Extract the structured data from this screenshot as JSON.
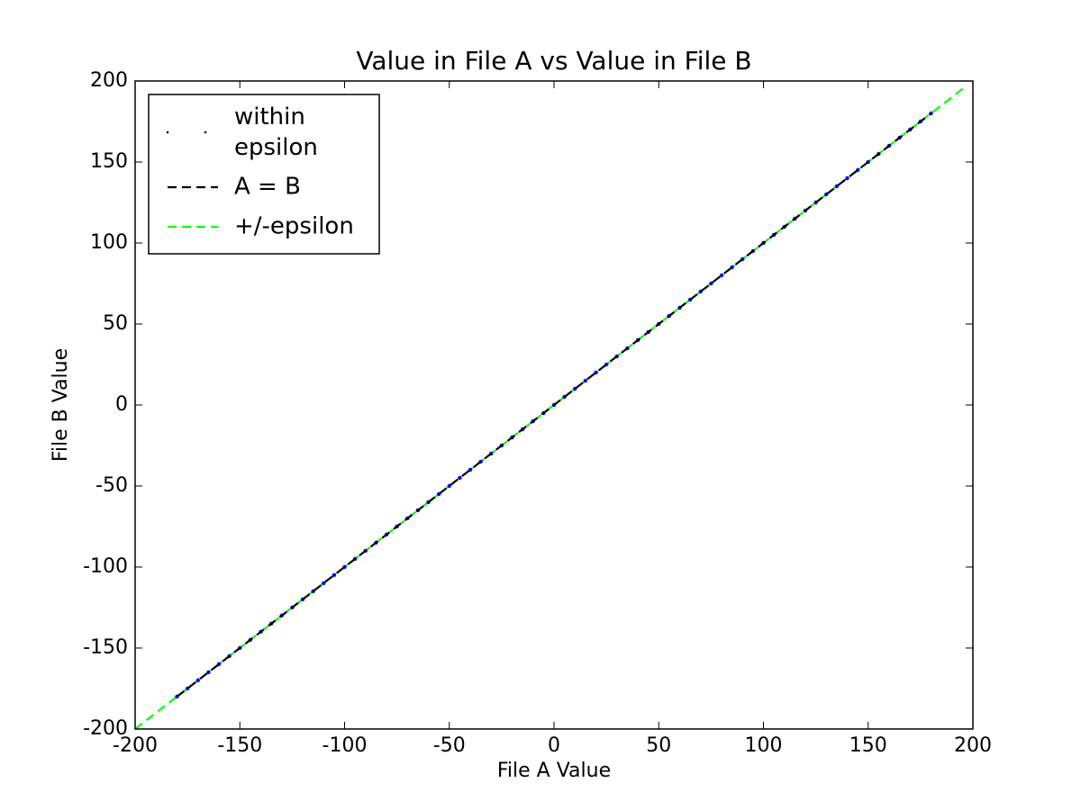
{
  "chart_data": {
    "type": "scatter",
    "title": "Value in File A vs Value in File B",
    "x_label": "File A Value",
    "y_label": "File B Value",
    "xlim": [
      -200,
      200
    ],
    "ylim": [
      -200,
      200
    ],
    "xticks": [
      -200,
      -150,
      -100,
      -50,
      0,
      50,
      100,
      150,
      200
    ],
    "yticks": [
      -200,
      -150,
      -100,
      -50,
      0,
      50,
      100,
      150,
      200
    ],
    "legend": "upper left",
    "series": [
      {
        "name": "within epsilon",
        "type": "scatter",
        "color": "#0000ff",
        "x": [
          -180,
          -175,
          -170,
          -165,
          -160,
          -155,
          -150,
          -145,
          -140,
          -135,
          -130,
          -125,
          -120,
          -115,
          -110,
          -105,
          -100,
          -95,
          -90,
          -85,
          -80,
          -75,
          -70,
          -65,
          -60,
          -55,
          -50,
          -45,
          -40,
          -35,
          -30,
          -25,
          -20,
          -15,
          -10,
          -5,
          0,
          5,
          10,
          15,
          20,
          25,
          30,
          35,
          40,
          45,
          50,
          55,
          60,
          65,
          70,
          75,
          80,
          85,
          90,
          95,
          100,
          105,
          110,
          115,
          120,
          125,
          130,
          135,
          140,
          145,
          150,
          155,
          160,
          165,
          170,
          175,
          180
        ],
        "values": [
          -180,
          -175,
          -170,
          -165,
          -160,
          -155,
          -150,
          -145,
          -140,
          -135,
          -130,
          -125,
          -120,
          -115,
          -110,
          -105,
          -100,
          -95,
          -90,
          -85,
          -80,
          -75,
          -70,
          -65,
          -60,
          -55,
          -50,
          -45,
          -40,
          -35,
          -30,
          -25,
          -20,
          -15,
          -10,
          -5,
          0,
          5,
          10,
          15,
          20,
          25,
          30,
          35,
          40,
          45,
          50,
          55,
          60,
          65,
          70,
          75,
          80,
          85,
          90,
          95,
          100,
          105,
          110,
          115,
          120,
          125,
          130,
          135,
          140,
          145,
          150,
          155,
          160,
          165,
          170,
          175,
          180
        ]
      },
      {
        "name": "A = B",
        "type": "line",
        "dashed": true,
        "color": "#000000",
        "x": [
          -180,
          180
        ],
        "values": [
          -180,
          180
        ]
      },
      {
        "name": "+/-epsilon",
        "type": "line",
        "dashed": true,
        "color": "#00ff00",
        "x": [
          -200,
          197
        ],
        "values": [
          -200,
          197
        ]
      }
    ]
  }
}
